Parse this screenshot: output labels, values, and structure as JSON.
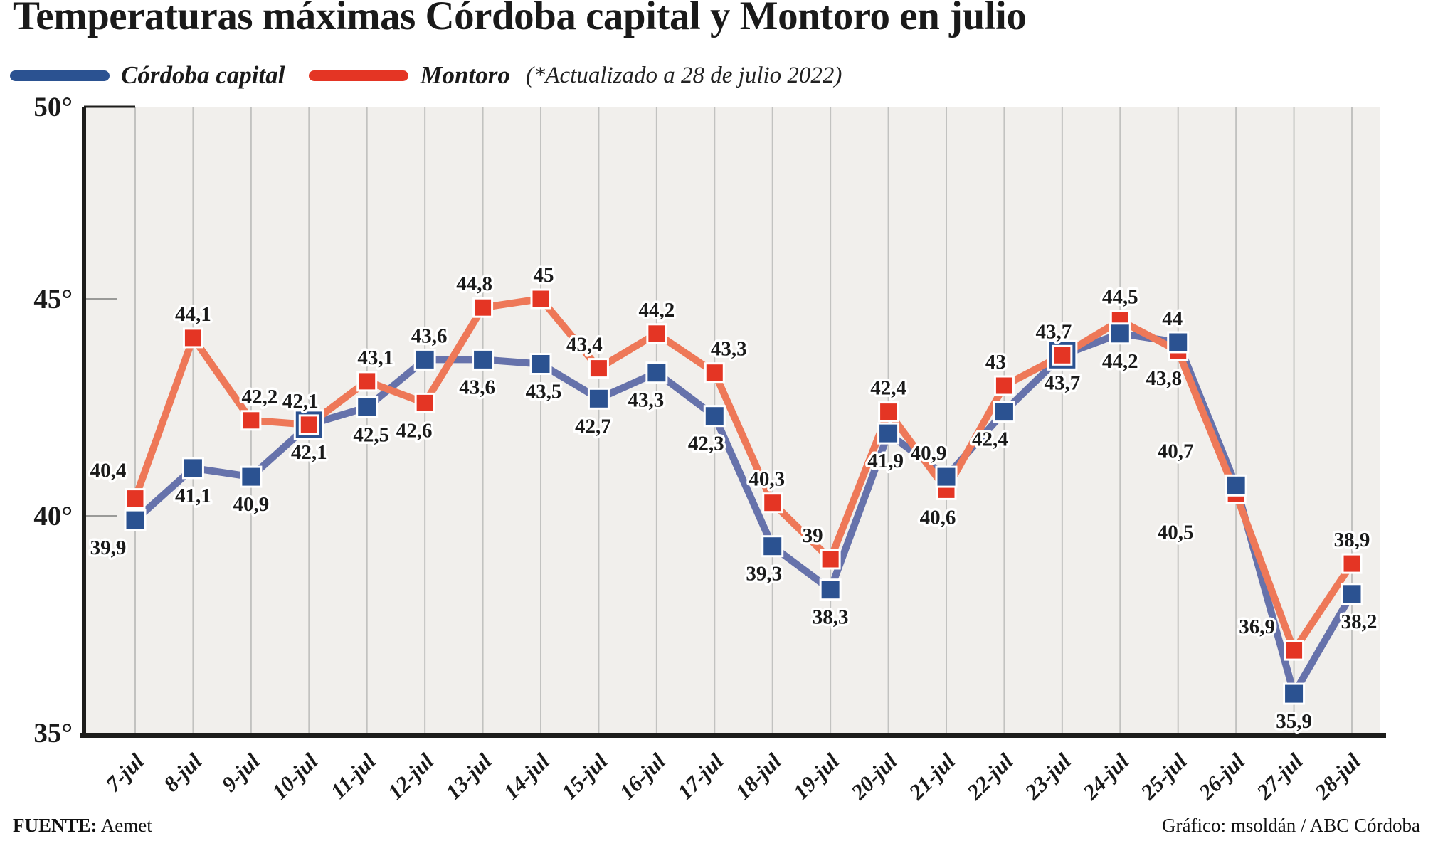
{
  "title": "Temperaturas máximas Córdoba capital y Montoro en julio",
  "legend": {
    "series": [
      {
        "label": "Córdoba capital"
      },
      {
        "label": "Montoro"
      }
    ],
    "note": "(*Actualizado a 28 de julio 2022)"
  },
  "footer": {
    "source_label": "FUENTE:",
    "source_value": "Aemet",
    "credit": "Gráfico: msoldán / ABC Córdoba"
  },
  "colors": {
    "plot_bg": "#f1efec",
    "gridline": "#c2c2c0",
    "tick": "#9a9a98",
    "axis": "#1d1d1b",
    "text": "#1a1a1a",
    "label_halo": "#ffffff"
  },
  "chart_data": {
    "type": "line",
    "title": "Temperaturas máximas Córdoba capital y Montoro en julio",
    "x_categories": [
      "7-jul",
      "8-jul",
      "9-jul",
      "10-jul",
      "11-jul",
      "12-jul",
      "13-jul",
      "14-jul",
      "15-jul",
      "16-jul",
      "17-jul",
      "18-jul",
      "19-jul",
      "20-jul",
      "21-jul",
      "22-jul",
      "23-jul",
      "24-jul",
      "25-jul",
      "26-jul",
      "27-jul",
      "28-jul"
    ],
    "ylim": [
      35,
      50
    ],
    "yticks": [
      {
        "value": 50,
        "label": "50°"
      },
      {
        "value": 45,
        "label": "45°"
      },
      {
        "value": 40,
        "label": "40°"
      },
      {
        "value": 35,
        "label": "35°"
      }
    ],
    "grid": "vertical",
    "legend_position": "top",
    "decimal_separator": ",",
    "series": [
      {
        "name": "Córdoba capital",
        "marker_color": "#2b5291",
        "line_color": "#6672ab",
        "values": [
          39.9,
          41.1,
          40.9,
          42.1,
          42.5,
          43.6,
          43.6,
          43.5,
          42.7,
          43.3,
          42.3,
          39.3,
          38.3,
          41.9,
          40.9,
          42.4,
          43.7,
          44.2,
          44,
          40.7,
          35.9,
          38.2
        ],
        "label_side": [
          "below",
          "below",
          "below",
          "below",
          "below",
          "above",
          "below",
          "below",
          "below",
          "below",
          "below",
          "below",
          "below",
          "below",
          "above",
          "below",
          "below",
          "below",
          "above",
          "above",
          "below",
          "below"
        ],
        "label_dx": [
          -38,
          0,
          0,
          0,
          6,
          6,
          -8,
          4,
          -8,
          -15,
          -12,
          -12,
          0,
          -4,
          -25,
          -20,
          0,
          0,
          -8,
          -85,
          0,
          10
        ],
        "label_dy": [
          0,
          0,
          0,
          0,
          0,
          0,
          0,
          0,
          0,
          0,
          0,
          0,
          0,
          0,
          0,
          0,
          0,
          0,
          0,
          -15,
          0,
          0
        ]
      },
      {
        "name": "Montoro",
        "marker_color": "#e43524",
        "line_color": "#ee7858",
        "values": [
          40.4,
          44.1,
          42.2,
          42.1,
          43.1,
          42.6,
          44.8,
          45,
          43.4,
          44.2,
          43.3,
          40.3,
          39,
          42.4,
          40.6,
          43,
          43.7,
          44.5,
          43.8,
          40.5,
          36.9,
          38.9
        ],
        "label_side": [
          "above",
          "above",
          "above",
          "above",
          "above",
          "below",
          "above",
          "above",
          "above",
          "above",
          "above",
          "above",
          "above",
          "above",
          "below",
          "above",
          "above",
          "above",
          "below",
          "below",
          "above",
          "above"
        ],
        "label_dx": [
          -38,
          0,
          12,
          -12,
          12,
          -15,
          -12,
          4,
          -20,
          0,
          20,
          -8,
          -25,
          0,
          -12,
          -12,
          -12,
          0,
          -20,
          -85,
          -52,
          0
        ],
        "label_dy": [
          -6,
          0,
          0,
          0,
          0,
          0,
          0,
          0,
          0,
          0,
          0,
          0,
          0,
          0,
          0,
          0,
          0,
          0,
          0,
          15,
          0,
          0
        ]
      }
    ]
  }
}
